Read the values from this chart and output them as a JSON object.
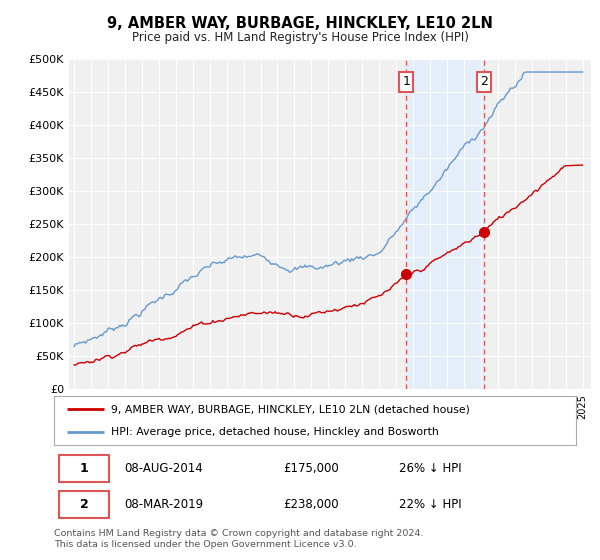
{
  "title": "9, AMBER WAY, BURBAGE, HINCKLEY, LE10 2LN",
  "subtitle": "Price paid vs. HM Land Registry's House Price Index (HPI)",
  "legend_line1": "9, AMBER WAY, BURBAGE, HINCKLEY, LE10 2LN (detached house)",
  "legend_line2": "HPI: Average price, detached house, Hinckley and Bosworth",
  "annotation1_label": "1",
  "annotation1_date": "08-AUG-2014",
  "annotation1_price": "£175,000",
  "annotation1_hpi": "26% ↓ HPI",
  "annotation1_year": 2014.6,
  "annotation1_value": 175000,
  "annotation2_label": "2",
  "annotation2_date": "08-MAR-2019",
  "annotation2_price": "£238,000",
  "annotation2_hpi": "22% ↓ HPI",
  "annotation2_year": 2019.18,
  "annotation2_value": 238000,
  "footer": "Contains HM Land Registry data © Crown copyright and database right 2024.\nThis data is licensed under the Open Government Licence v3.0.",
  "red_color": "#cc0000",
  "blue_color": "#6699cc",
  "shade_color": "#ddeeff",
  "vline_color": "#dd5555",
  "ylim": [
    0,
    500000
  ],
  "yticks": [
    0,
    50000,
    100000,
    150000,
    200000,
    250000,
    300000,
    350000,
    400000,
    450000,
    500000
  ],
  "background_color": "#ffffff",
  "plot_bg_color": "#f0f0f0",
  "xstart": 1995,
  "xend": 2025
}
